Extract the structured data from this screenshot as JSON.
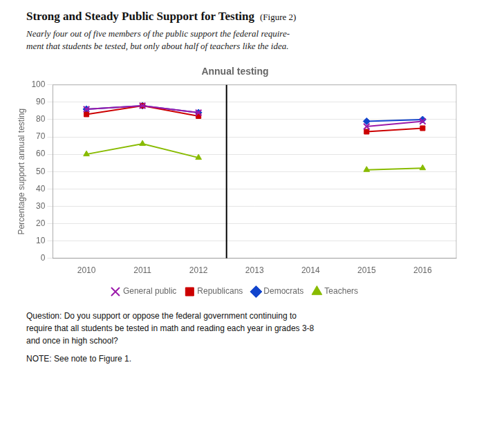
{
  "chart_data": {
    "type": "line",
    "header_title": "Strong and Steady Public Support for Testing",
    "figure_label": "(Figure 2)",
    "subtitle": "Nearly four out of five members of the public support the federal require-\nment that students be tested, but only about half of teachers like the idea.",
    "title": "Annual testing",
    "ylabel": "Percentage support annual testing",
    "x": [
      2010,
      2011,
      2012,
      2013,
      2014,
      2015,
      2016
    ],
    "series": [
      {
        "name": "General public",
        "color": "#9b1aaa",
        "marker": "x",
        "values": [
          86,
          88,
          84,
          null,
          null,
          76,
          79
        ]
      },
      {
        "name": "Republicans",
        "color": "#cc0000",
        "marker": "square",
        "values": [
          83,
          88,
          82,
          null,
          null,
          73,
          75
        ]
      },
      {
        "name": "Democrats",
        "color": "#1144cc",
        "marker": "diamond",
        "values": [
          86,
          88,
          84,
          null,
          null,
          79,
          80
        ]
      },
      {
        "name": "Teachers",
        "color": "#88bb00",
        "marker": "triangle",
        "values": [
          60,
          66,
          58,
          null,
          null,
          51,
          52
        ]
      }
    ],
    "xlim": [
      2009.4,
      2016.6
    ],
    "xticks": [
      2010,
      2011,
      2012,
      2013,
      2014,
      2015,
      2016
    ],
    "ylim": [
      0,
      100
    ],
    "yticks": [
      0,
      10,
      20,
      30,
      40,
      50,
      60,
      70,
      80,
      90,
      100
    ],
    "grid": "y",
    "legend": "bottom",
    "vlines": [
      2012.5
    ],
    "question": "Question: Do you support or oppose the federal government continuing to\nrequire that all students be tested in math and reading each year in grades 3-8\nand once in high school?",
    "note": "NOTE: See note to Figure 1."
  }
}
